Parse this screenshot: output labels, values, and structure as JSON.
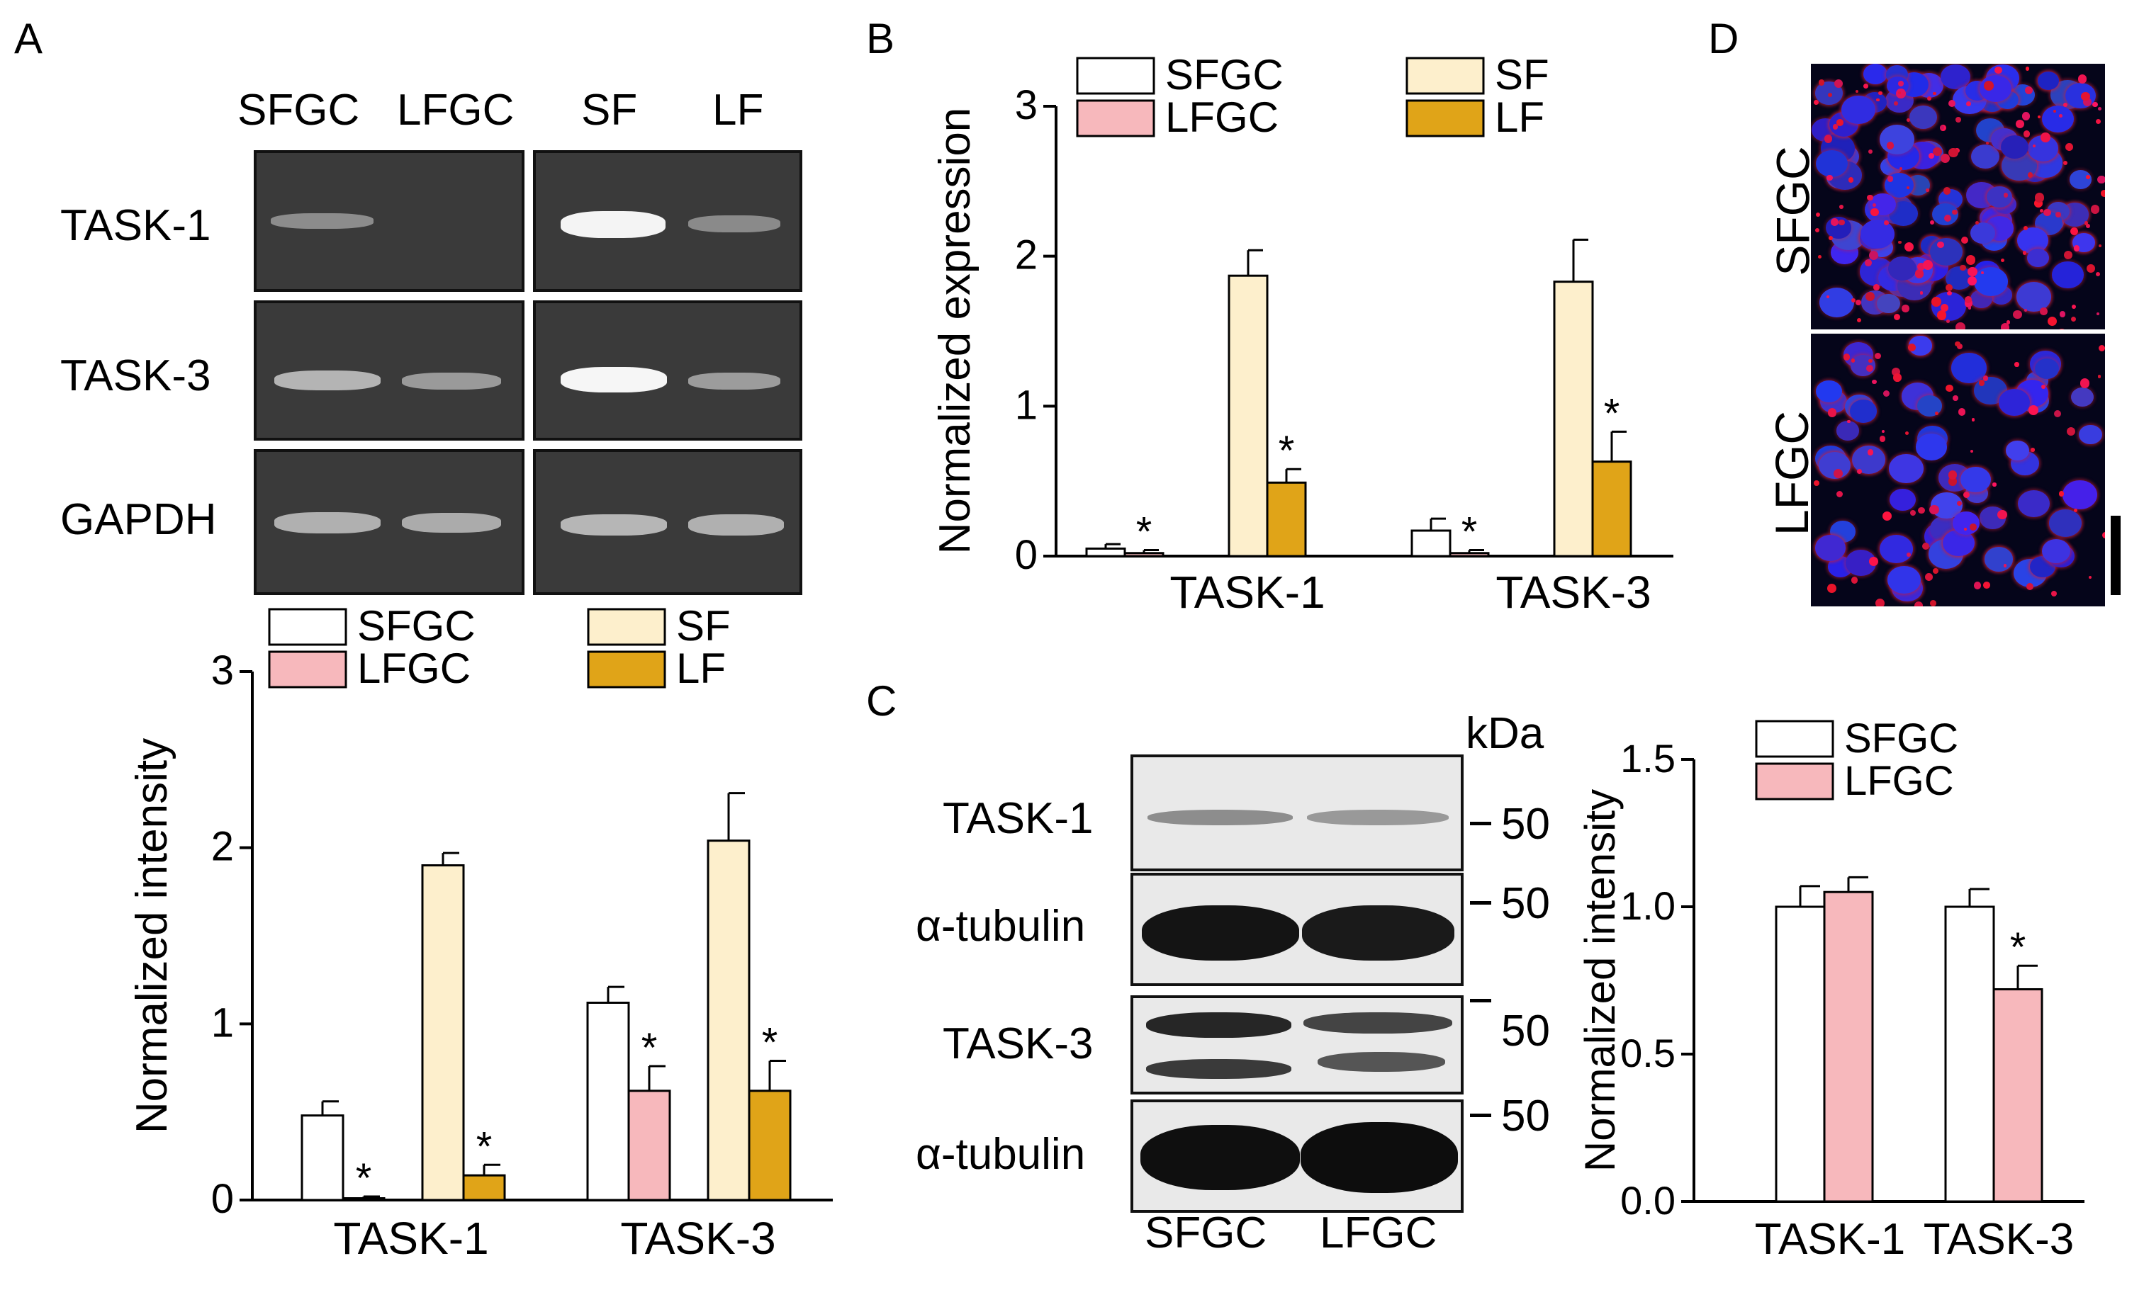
{
  "panels": {
    "a": "A",
    "b": "B",
    "c": "C",
    "d": "D"
  },
  "panel_a": {
    "lanes": [
      "SFGC",
      "LFGC",
      "SF",
      "LF"
    ],
    "rows": [
      "TASK-1",
      "TASK-3",
      "GAPDH"
    ]
  },
  "panel_c": {
    "kda_label": "kDa",
    "rows": [
      "TASK-1",
      "α-tubulin",
      "TASK-3",
      "α-tubulin"
    ],
    "markers": [
      "50",
      "50",
      "50",
      "50"
    ],
    "lanes": [
      "SFGC",
      "LFGC"
    ]
  },
  "panel_d": {
    "rows": [
      "SFGC",
      "LFGC"
    ]
  },
  "colors": {
    "SFGC": "#ffffff",
    "LFGC": "#f7b8bc",
    "SF": "#fdefcc",
    "LF": "#e0a418"
  },
  "chart_data": [
    {
      "panel": "A",
      "type": "bar",
      "ylabel": "Normalized intensity",
      "ylim": [
        0,
        3
      ],
      "yticks": [
        "0",
        "1",
        "2",
        "3"
      ],
      "categories": [
        "TASK-1",
        "TASK-3"
      ],
      "series": [
        {
          "name": "SFGC",
          "values": [
            0.48,
            1.12
          ],
          "errors": [
            0.08,
            0.09
          ],
          "sig": [
            "",
            ""
          ]
        },
        {
          "name": "LFGC",
          "values": [
            0.01,
            0.62
          ],
          "errors": [
            0.01,
            0.14
          ],
          "sig": [
            "*",
            "*"
          ]
        },
        {
          "name": "SF",
          "values": [
            1.9,
            2.04
          ],
          "errors": [
            0.07,
            0.27
          ],
          "sig": [
            "",
            ""
          ]
        },
        {
          "name": "LF",
          "values": [
            0.14,
            0.62
          ],
          "errors": [
            0.06,
            0.17
          ],
          "sig": [
            "*",
            "*"
          ]
        }
      ],
      "legend": "top"
    },
    {
      "panel": "B",
      "type": "bar",
      "ylabel": "Normalized expression",
      "ylim": [
        0,
        3
      ],
      "yticks": [
        "0",
        "1",
        "2",
        "3"
      ],
      "categories": [
        "TASK-1",
        "TASK-3"
      ],
      "series": [
        {
          "name": "SFGC",
          "values": [
            0.05,
            0.17
          ],
          "errors": [
            0.03,
            0.08
          ],
          "sig": [
            "",
            ""
          ]
        },
        {
          "name": "LFGC",
          "values": [
            0.02,
            0.02
          ],
          "errors": [
            0.02,
            0.02
          ],
          "sig": [
            "*",
            "*"
          ]
        },
        {
          "name": "SF",
          "values": [
            1.87,
            1.83
          ],
          "errors": [
            0.17,
            0.28
          ],
          "sig": [
            "",
            ""
          ]
        },
        {
          "name": "LF",
          "values": [
            0.49,
            0.63
          ],
          "errors": [
            0.09,
            0.2
          ],
          "sig": [
            "*",
            "*"
          ]
        }
      ],
      "legend": "top"
    },
    {
      "panel": "C",
      "type": "bar",
      "ylabel": "Normalized intensity",
      "ylim": [
        0,
        1.5
      ],
      "yticks": [
        "0.0",
        "0.5",
        "1.0",
        "1.5"
      ],
      "categories": [
        "TASK-1",
        "TASK-3"
      ],
      "series": [
        {
          "name": "SFGC",
          "values": [
            1.0,
            1.0
          ],
          "errors": [
            0.07,
            0.06
          ],
          "sig": [
            "",
            ""
          ]
        },
        {
          "name": "LFGC",
          "values": [
            1.05,
            0.72
          ],
          "errors": [
            0.05,
            0.08
          ],
          "sig": [
            "",
            "*"
          ]
        }
      ],
      "legend": "top-right"
    }
  ]
}
